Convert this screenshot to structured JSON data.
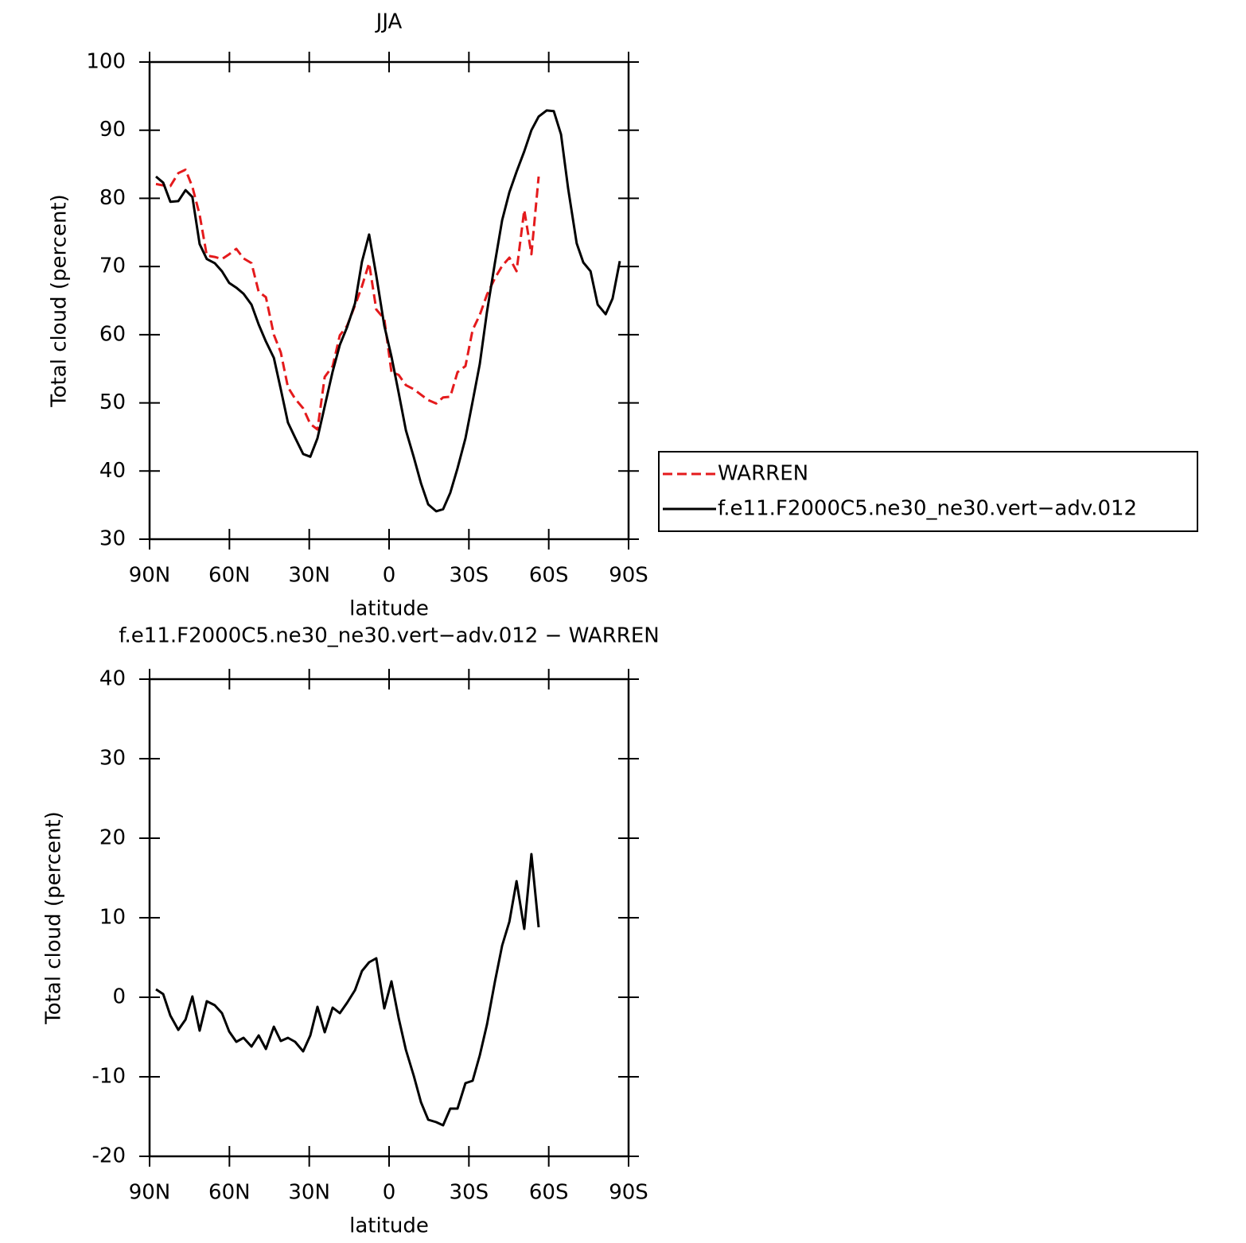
{
  "chart_data": [
    {
      "type": "line",
      "title": "JJA",
      "xlabel": "latitude",
      "ylabel": "Total cloud (percent)",
      "x": [
        87.6,
        84.9,
        82.2,
        79.2,
        76.5,
        73.9,
        71.2,
        68.5,
        65.5,
        62.8,
        60.1,
        57.4,
        54.7,
        51.7,
        49.0,
        46.3,
        43.3,
        40.7,
        38.0,
        35.3,
        32.3,
        29.6,
        26.9,
        24.2,
        21.2,
        18.5,
        15.8,
        12.8,
        10.2,
        7.5,
        4.8,
        1.8,
        -0.9,
        -3.6,
        -6.3,
        -9.3,
        -12.0,
        -14.7,
        -17.7,
        -20.3,
        -23.0,
        -25.7,
        -28.7,
        -31.4,
        -34.1,
        -36.8,
        -39.8,
        -42.5,
        -45.2,
        -47.9,
        -50.8,
        -53.5,
        -56.2,
        -59.2,
        -61.9,
        -64.6,
        -67.3,
        -70.5,
        -73.0,
        -75.7,
        -78.4,
        -81.4,
        -84.0,
        -86.7
      ],
      "series": [
        {
          "name": "WARREN",
          "color": "#e41a1c",
          "line_style": "dashed",
          "values": [
            82.1,
            81.9,
            81.8,
            83.7,
            84.2,
            81.7,
            77.6,
            71.6,
            71.4,
            71.1,
            71.8,
            72.6,
            71.2,
            70.5,
            66.3,
            65.5,
            60.0,
            57.4,
            52.3,
            50.6,
            49.2,
            46.9,
            46.1,
            53.8,
            55.4,
            59.9,
            61.3,
            64.3,
            67.1,
            70.5,
            63.7,
            62.3,
            54.5,
            54.1,
            52.6,
            52.0,
            51.2,
            50.4,
            49.9,
            50.8,
            50.9,
            54.5,
            55.4,
            60.7,
            62.9,
            65.9,
            68.3,
            70.1,
            71.3,
            69.3,
            78.3,
            71.8,
            83.2,
            null,
            null,
            null,
            null,
            null,
            null,
            null,
            null,
            null,
            null,
            null
          ]
        },
        {
          "name": "f.e11.F2000C5.ne30_ne30.vert−adv.012",
          "color": "#000000",
          "line_style": "solid",
          "values": [
            83.2,
            82.3,
            79.5,
            79.6,
            81.2,
            80.2,
            73.3,
            71.1,
            70.5,
            69.3,
            67.6,
            66.9,
            66.0,
            64.4,
            61.5,
            59.0,
            56.6,
            52.0,
            47.1,
            44.9,
            42.5,
            42.1,
            44.8,
            49.5,
            54.6,
            58.5,
            61.1,
            64.6,
            70.7,
            74.7,
            68.7,
            61.3,
            56.8,
            51.5,
            46.0,
            42.0,
            38.2,
            35.1,
            34.1,
            34.4,
            36.8,
            40.4,
            44.8,
            50.2,
            55.7,
            63.4,
            70.6,
            76.8,
            80.9,
            83.9,
            86.9,
            90.0,
            92.0,
            92.9,
            92.8,
            89.4,
            81.4,
            73.4,
            70.6,
            69.3,
            64.4,
            63.0,
            65.3,
            70.8
          ]
        }
      ],
      "xlim": [
        90,
        -90
      ],
      "xticks": [
        {
          "value": 90,
          "label": "90N"
        },
        {
          "value": 60,
          "label": "60N"
        },
        {
          "value": 30,
          "label": "30N"
        },
        0,
        {
          "value": -30,
          "label": "30S"
        },
        {
          "value": -60,
          "label": "60S"
        },
        {
          "value": -90,
          "label": "90S"
        }
      ],
      "ylim": [
        30,
        100
      ],
      "yticks": [
        30,
        40,
        50,
        60,
        70,
        80,
        90,
        100
      ],
      "legend": "right"
    },
    {
      "type": "line",
      "title": "f.e11.F2000C5.ne30_ne30.vert−adv.012 − WARREN",
      "xlabel": "latitude",
      "ylabel": "Total cloud (percent)",
      "x": [
        87.6,
        84.9,
        82.2,
        79.2,
        76.5,
        73.9,
        71.2,
        68.5,
        65.5,
        62.8,
        60.1,
        57.4,
        54.7,
        51.7,
        49.0,
        46.3,
        43.3,
        40.7,
        38.0,
        35.3,
        32.3,
        29.6,
        26.9,
        24.2,
        21.2,
        18.5,
        15.8,
        12.8,
        10.2,
        7.5,
        4.8,
        1.8,
        -0.9,
        -3.6,
        -6.3,
        -9.3,
        -12.0,
        -14.7,
        -17.7,
        -20.3,
        -23.0,
        -25.7,
        -28.7,
        -31.4,
        -34.1,
        -36.8,
        -39.8,
        -42.5,
        -45.2,
        -47.9,
        -50.8,
        -53.5,
        -56.2
      ],
      "series": [
        {
          "color": "#000000",
          "line_style": "solid",
          "values": [
            1.0,
            0.4,
            -2.3,
            -4.1,
            -2.8,
            0.1,
            -4.2,
            -0.5,
            -1.0,
            -2.0,
            -4.3,
            -5.6,
            -5.1,
            -6.2,
            -4.8,
            -6.5,
            -3.7,
            -5.5,
            -5.1,
            -5.6,
            -6.8,
            -4.8,
            -1.2,
            -4.4,
            -1.3,
            -2.0,
            -0.7,
            0.9,
            3.3,
            4.4,
            4.9,
            -1.4,
            2.0,
            -2.6,
            -6.6,
            -9.9,
            -13.2,
            -15.4,
            -15.7,
            -16.1,
            -14.0,
            -14.0,
            -10.8,
            -10.5,
            -7.3,
            -3.4,
            2.0,
            6.5,
            9.5,
            14.6,
            8.6,
            18.0,
            8.8
          ]
        }
      ],
      "xlim": [
        90,
        -90
      ],
      "xticks": [
        {
          "value": 90,
          "label": "90N"
        },
        {
          "value": 60,
          "label": "60N"
        },
        {
          "value": 30,
          "label": "30N"
        },
        0,
        {
          "value": -30,
          "label": "30S"
        },
        {
          "value": -60,
          "label": "60S"
        },
        {
          "value": -90,
          "label": "90S"
        }
      ],
      "ylim": [
        -20,
        40
      ],
      "yticks": [
        -20,
        -10,
        0,
        10,
        20,
        30,
        40
      ]
    }
  ]
}
